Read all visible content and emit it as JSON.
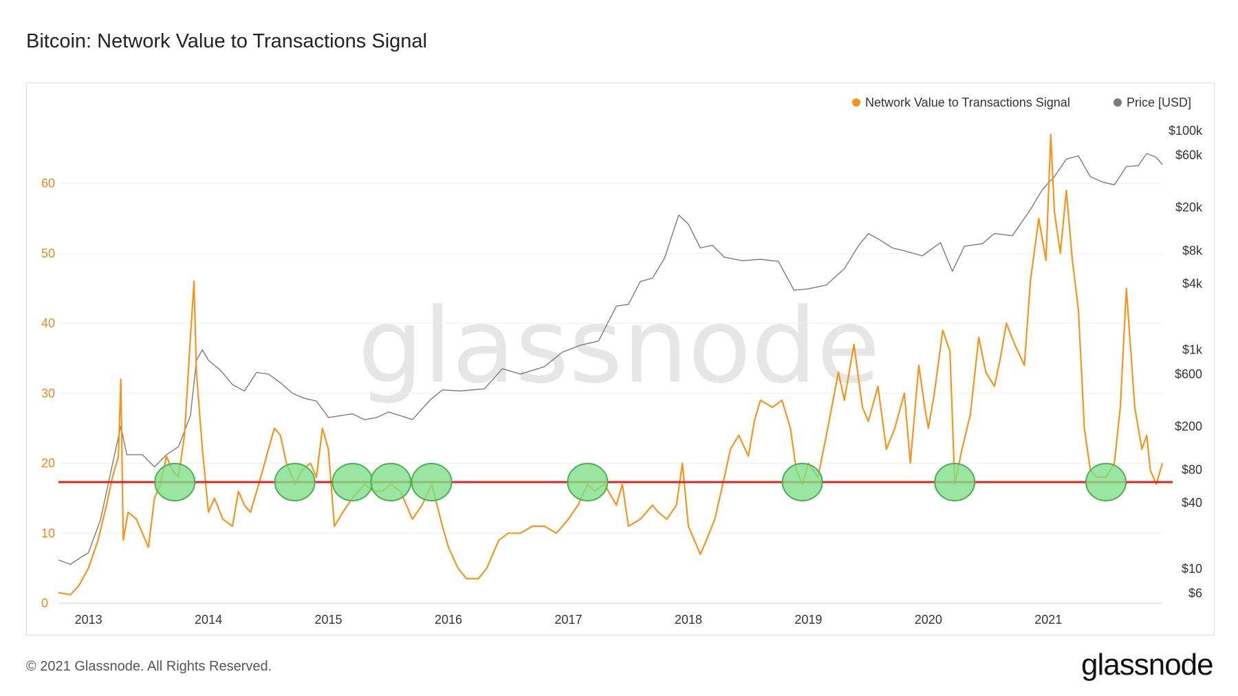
{
  "title": "Bitcoin: Network Value to Transactions Signal",
  "footer": {
    "copyright": "© 2021 Glassnode. All Rights Reserved.",
    "brand": "glassnode"
  },
  "watermark": "glassnode",
  "colors": {
    "nvts": "#f7931a",
    "price": "#7a7a7a",
    "threshold": "#e3201b",
    "highlight": "#7ee08a",
    "highlight_stroke": "#4caf50"
  },
  "chart_data": {
    "type": "line",
    "title": "Bitcoin: Network Value to Transactions Signal",
    "legend": [
      {
        "name": "Network Value to Transactions Signal",
        "color": "#f7931a"
      },
      {
        "name": "Price [USD]",
        "color": "#7a7a7a"
      }
    ],
    "legend_position": "top-right",
    "x_ticks": [
      "2013",
      "2014",
      "2015",
      "2016",
      "2017",
      "2018",
      "2019",
      "2020",
      "2021"
    ],
    "x_range": [
      2012.75,
      2021.95
    ],
    "y_left": {
      "label": "",
      "ticks": [
        0,
        10,
        20,
        30,
        40,
        50,
        60
      ],
      "range": [
        0,
        70
      ]
    },
    "y_right": {
      "label": "",
      "scale": "log",
      "ticks": [
        "$100k",
        "$60k",
        "$20k",
        "$8k",
        "$4k",
        "$1k",
        "$600",
        "$200",
        "$80",
        "$40",
        "$10",
        "$6"
      ],
      "tick_values": [
        100000,
        60000,
        20000,
        8000,
        4000,
        1000,
        600,
        200,
        80,
        40,
        10,
        6
      ],
      "range": [
        5,
        100000
      ]
    },
    "threshold": 17.3,
    "highlight_dates": [
      2013.72,
      2014.72,
      2015.2,
      2015.52,
      2015.86,
      2017.16,
      2018.95,
      2020.22,
      2021.48
    ],
    "series": [
      {
        "name": "Network Value to Transactions Signal",
        "axis": "left",
        "points": [
          [
            2012.75,
            1.5
          ],
          [
            2012.85,
            1.2
          ],
          [
            2012.92,
            2.5
          ],
          [
            2013.0,
            5
          ],
          [
            2013.08,
            9
          ],
          [
            2013.15,
            14
          ],
          [
            2013.2,
            18
          ],
          [
            2013.25,
            21
          ],
          [
            2013.27,
            32
          ],
          [
            2013.29,
            9
          ],
          [
            2013.33,
            13
          ],
          [
            2013.4,
            12
          ],
          [
            2013.45,
            10
          ],
          [
            2013.5,
            8
          ],
          [
            2013.55,
            15
          ],
          [
            2013.6,
            17
          ],
          [
            2013.65,
            21
          ],
          [
            2013.7,
            19
          ],
          [
            2013.75,
            18
          ],
          [
            2013.8,
            24
          ],
          [
            2013.85,
            38
          ],
          [
            2013.88,
            46
          ],
          [
            2013.9,
            33
          ],
          [
            2013.95,
            22
          ],
          [
            2014.0,
            13
          ],
          [
            2014.05,
            15
          ],
          [
            2014.12,
            12
          ],
          [
            2014.2,
            11
          ],
          [
            2014.25,
            16
          ],
          [
            2014.3,
            14
          ],
          [
            2014.35,
            13
          ],
          [
            2014.42,
            17
          ],
          [
            2014.5,
            22
          ],
          [
            2014.55,
            25
          ],
          [
            2014.6,
            24
          ],
          [
            2014.65,
            20
          ],
          [
            2014.7,
            18
          ],
          [
            2014.72,
            17
          ],
          [
            2014.78,
            19
          ],
          [
            2014.85,
            20
          ],
          [
            2014.9,
            18
          ],
          [
            2014.95,
            25
          ],
          [
            2015.0,
            22
          ],
          [
            2015.05,
            11
          ],
          [
            2015.12,
            13
          ],
          [
            2015.2,
            15
          ],
          [
            2015.3,
            17
          ],
          [
            2015.38,
            16
          ],
          [
            2015.45,
            16
          ],
          [
            2015.52,
            17
          ],
          [
            2015.6,
            16
          ],
          [
            2015.65,
            14
          ],
          [
            2015.7,
            12
          ],
          [
            2015.78,
            14
          ],
          [
            2015.86,
            17
          ],
          [
            2015.95,
            11
          ],
          [
            2016.0,
            8
          ],
          [
            2016.08,
            5
          ],
          [
            2016.15,
            3.5
          ],
          [
            2016.25,
            3.5
          ],
          [
            2016.32,
            5
          ],
          [
            2016.42,
            9
          ],
          [
            2016.5,
            10
          ],
          [
            2016.6,
            10
          ],
          [
            2016.7,
            11
          ],
          [
            2016.8,
            11
          ],
          [
            2016.9,
            10
          ],
          [
            2017.0,
            12
          ],
          [
            2017.08,
            14
          ],
          [
            2017.16,
            17
          ],
          [
            2017.22,
            16
          ],
          [
            2017.3,
            17
          ],
          [
            2017.4,
            14
          ],
          [
            2017.45,
            17
          ],
          [
            2017.5,
            11
          ],
          [
            2017.6,
            12
          ],
          [
            2017.7,
            14
          ],
          [
            2017.75,
            13
          ],
          [
            2017.82,
            12
          ],
          [
            2017.9,
            14
          ],
          [
            2017.95,
            20
          ],
          [
            2018.0,
            11
          ],
          [
            2018.05,
            9
          ],
          [
            2018.1,
            7
          ],
          [
            2018.15,
            9
          ],
          [
            2018.22,
            12
          ],
          [
            2018.3,
            18
          ],
          [
            2018.35,
            22
          ],
          [
            2018.42,
            24
          ],
          [
            2018.5,
            21
          ],
          [
            2018.55,
            26
          ],
          [
            2018.6,
            29
          ],
          [
            2018.7,
            28
          ],
          [
            2018.78,
            29
          ],
          [
            2018.85,
            25
          ],
          [
            2018.9,
            19
          ],
          [
            2018.95,
            17
          ],
          [
            2019.0,
            20
          ],
          [
            2019.08,
            18
          ],
          [
            2019.15,
            24
          ],
          [
            2019.25,
            33
          ],
          [
            2019.3,
            29
          ],
          [
            2019.38,
            37
          ],
          [
            2019.45,
            28
          ],
          [
            2019.5,
            26
          ],
          [
            2019.58,
            31
          ],
          [
            2019.65,
            22
          ],
          [
            2019.72,
            25
          ],
          [
            2019.8,
            30
          ],
          [
            2019.85,
            20
          ],
          [
            2019.92,
            34
          ],
          [
            2019.97,
            28
          ],
          [
            2020.0,
            25
          ],
          [
            2020.05,
            30
          ],
          [
            2020.12,
            39
          ],
          [
            2020.18,
            36
          ],
          [
            2020.22,
            17
          ],
          [
            2020.28,
            22
          ],
          [
            2020.35,
            27
          ],
          [
            2020.42,
            38
          ],
          [
            2020.48,
            33
          ],
          [
            2020.55,
            31
          ],
          [
            2020.6,
            35
          ],
          [
            2020.65,
            40
          ],
          [
            2020.72,
            37
          ],
          [
            2020.8,
            34
          ],
          [
            2020.85,
            46
          ],
          [
            2020.92,
            55
          ],
          [
            2020.98,
            49
          ],
          [
            2021.02,
            67
          ],
          [
            2021.05,
            56
          ],
          [
            2021.1,
            50
          ],
          [
            2021.15,
            59
          ],
          [
            2021.2,
            49
          ],
          [
            2021.25,
            42
          ],
          [
            2021.3,
            25
          ],
          [
            2021.35,
            19
          ],
          [
            2021.4,
            18
          ],
          [
            2021.48,
            18
          ],
          [
            2021.55,
            20
          ],
          [
            2021.6,
            28
          ],
          [
            2021.65,
            45
          ],
          [
            2021.72,
            28
          ],
          [
            2021.78,
            22
          ],
          [
            2021.82,
            24
          ],
          [
            2021.85,
            19
          ],
          [
            2021.9,
            17
          ],
          [
            2021.95,
            20
          ]
        ]
      },
      {
        "name": "Price [USD]",
        "axis": "right",
        "points": [
          [
            2012.75,
            12
          ],
          [
            2012.85,
            11
          ],
          [
            2012.95,
            13
          ],
          [
            2013.0,
            14
          ],
          [
            2013.1,
            28
          ],
          [
            2013.2,
            90
          ],
          [
            2013.27,
            200
          ],
          [
            2013.32,
            110
          ],
          [
            2013.45,
            110
          ],
          [
            2013.55,
            85
          ],
          [
            2013.65,
            110
          ],
          [
            2013.75,
            130
          ],
          [
            2013.85,
            250
          ],
          [
            2013.9,
            800
          ],
          [
            2013.95,
            1000
          ],
          [
            2014.0,
            800
          ],
          [
            2014.1,
            650
          ],
          [
            2014.2,
            480
          ],
          [
            2014.3,
            420
          ],
          [
            2014.4,
            620
          ],
          [
            2014.5,
            600
          ],
          [
            2014.6,
            500
          ],
          [
            2014.7,
            400
          ],
          [
            2014.8,
            360
          ],
          [
            2014.9,
            340
          ],
          [
            2015.0,
            240
          ],
          [
            2015.1,
            250
          ],
          [
            2015.2,
            260
          ],
          [
            2015.3,
            230
          ],
          [
            2015.4,
            240
          ],
          [
            2015.5,
            270
          ],
          [
            2015.6,
            250
          ],
          [
            2015.7,
            230
          ],
          [
            2015.85,
            350
          ],
          [
            2015.95,
            430
          ],
          [
            2016.1,
            420
          ],
          [
            2016.3,
            440
          ],
          [
            2016.45,
            670
          ],
          [
            2016.6,
            600
          ],
          [
            2016.8,
            700
          ],
          [
            2016.95,
            950
          ],
          [
            2017.1,
            1100
          ],
          [
            2017.25,
            1200
          ],
          [
            2017.4,
            2500
          ],
          [
            2017.5,
            2600
          ],
          [
            2017.6,
            4200
          ],
          [
            2017.7,
            4500
          ],
          [
            2017.8,
            6800
          ],
          [
            2017.92,
            17000
          ],
          [
            2018.0,
            14000
          ],
          [
            2018.1,
            8500
          ],
          [
            2018.2,
            9000
          ],
          [
            2018.3,
            7000
          ],
          [
            2018.45,
            6500
          ],
          [
            2018.6,
            6700
          ],
          [
            2018.75,
            6400
          ],
          [
            2018.88,
            3500
          ],
          [
            2019.0,
            3600
          ],
          [
            2019.15,
            3900
          ],
          [
            2019.3,
            5500
          ],
          [
            2019.42,
            9000
          ],
          [
            2019.5,
            11500
          ],
          [
            2019.6,
            10000
          ],
          [
            2019.7,
            8500
          ],
          [
            2019.8,
            8000
          ],
          [
            2019.95,
            7200
          ],
          [
            2020.1,
            9500
          ],
          [
            2020.2,
            5200
          ],
          [
            2020.3,
            8800
          ],
          [
            2020.45,
            9300
          ],
          [
            2020.55,
            11500
          ],
          [
            2020.7,
            11000
          ],
          [
            2020.85,
            19000
          ],
          [
            2020.95,
            29000
          ],
          [
            2021.05,
            38000
          ],
          [
            2021.15,
            55000
          ],
          [
            2021.25,
            59000
          ],
          [
            2021.35,
            38000
          ],
          [
            2021.45,
            34000
          ],
          [
            2021.55,
            32000
          ],
          [
            2021.65,
            47000
          ],
          [
            2021.75,
            48000
          ],
          [
            2021.82,
            62000
          ],
          [
            2021.9,
            57000
          ],
          [
            2021.95,
            49000
          ]
        ]
      }
    ]
  }
}
